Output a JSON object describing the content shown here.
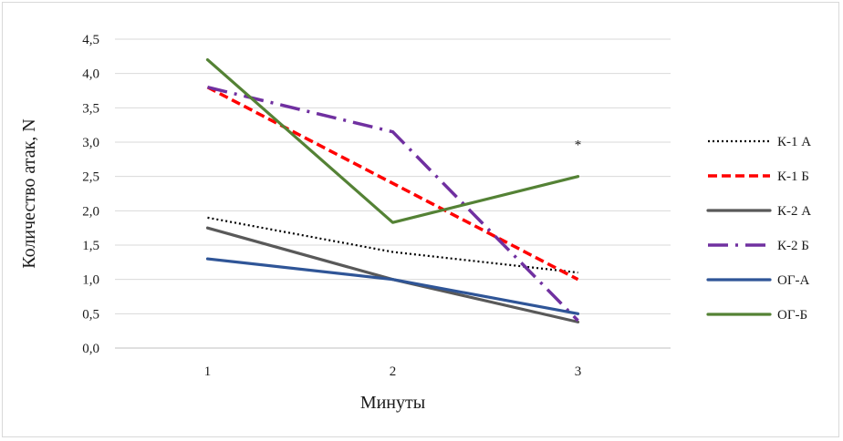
{
  "chart_data": {
    "type": "line",
    "xlabel": "Минуты",
    "ylabel": "Количество атак, N",
    "categories": [
      "1",
      "2",
      "3"
    ],
    "ylim": [
      0,
      4.5
    ],
    "y_ticks": [
      "0,0",
      "0,5",
      "1,0",
      "1,5",
      "2,0",
      "2,5",
      "3,0",
      "3,5",
      "4,0",
      "4,5"
    ],
    "grid": true,
    "legend_position": "right",
    "annotation": "*",
    "series": [
      {
        "name": "К-1 А",
        "values": [
          1.9,
          1.4,
          1.1
        ],
        "color": "#000000",
        "style": "dotted"
      },
      {
        "name": "К-1 Б",
        "values": [
          3.8,
          2.4,
          1.0
        ],
        "color": "#ff0000",
        "style": "dashed"
      },
      {
        "name": "К-2 А",
        "values": [
          1.75,
          1.0,
          0.38
        ],
        "color": "#595959",
        "style": "solid"
      },
      {
        "name": "К-2 Б",
        "values": [
          3.8,
          3.15,
          0.4
        ],
        "color": "#7030a0",
        "style": "dash-dot"
      },
      {
        "name": "ОГ-А",
        "values": [
          1.3,
          1.0,
          0.5
        ],
        "color": "#2f5597",
        "style": "solid"
      },
      {
        "name": "ОГ-Б",
        "values": [
          4.2,
          1.83,
          2.5
        ],
        "color": "#548235",
        "style": "solid"
      }
    ]
  }
}
